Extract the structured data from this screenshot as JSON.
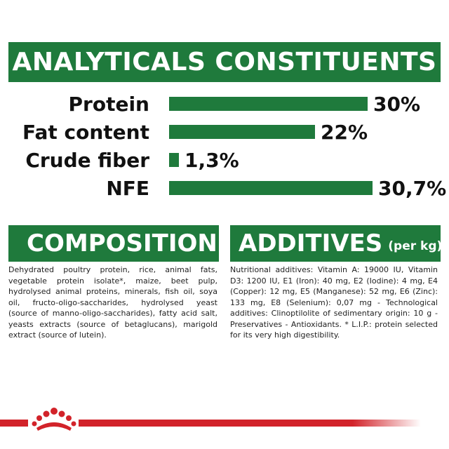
{
  "title": "ANALYTICALS CONSTITUENTS",
  "constituents": [
    {
      "label": "Protein",
      "value": "30%",
      "fraction": 0.3
    },
    {
      "label": "Fat content",
      "value": "22%",
      "fraction": 0.22
    },
    {
      "label": "Crude fiber",
      "value": "1,3%",
      "fraction": 0.013
    },
    {
      "label": "NFE",
      "value": "30,7%",
      "fraction": 0.307
    }
  ],
  "composition": {
    "heading": "COMPOSITION",
    "text": "Dehydrated poultry protein, rice, animal fats, vegetable protein isolate*, maize, beet pulp, hydrolysed animal proteins, minerals, fish oil, soya oil, fructo-oligo-saccharides, hydrolysed yeast (source of manno-oligo-saccharides), fatty acid salt, yeasts extracts (source of betaglucans), marigold extract (source of lutein)."
  },
  "additives": {
    "heading": "ADDITIVES",
    "heading_unit": "(per kg)",
    "text": "Nutritional additives: Vitamin A: 19000 IU, Vitamin D3: 1200 IU, E1 (Iron): 40 mg, E2 (Iodine): 4 mg, E4 (Copper): 12 mg, E5 (Manganese): 52 mg, E6 (Zinc): 133 mg, E8 (Selenium): 0,07 mg - Technological additives: Clinoptilolite of sedimentary origin: 10 g - Preservatives - Antioxidants. * L.I.P.: protein selected for its very high digestibility."
  },
  "colors": {
    "brand_green": "#1f7a3c",
    "brand_red": "#d2232a"
  },
  "icons": {
    "logo": "royal-crown-icon"
  }
}
